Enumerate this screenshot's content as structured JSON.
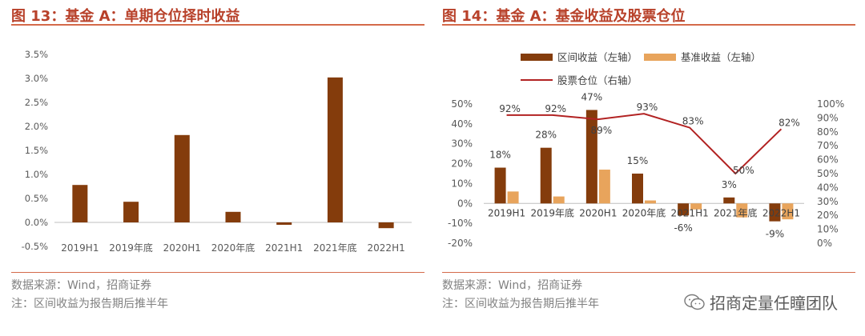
{
  "colors": {
    "bar_dark": "#843c0c",
    "bar_light": "#e8a45c",
    "line_red": "#b22222",
    "title_red": "#b8412a",
    "rule": "#d46a4a"
  },
  "left": {
    "title": "图 13：基金 A：单期仓位择时收益",
    "source": "数据来源：Wind，招商证券",
    "note": "注：区间收益为报告期后推半年",
    "chart_data": {
      "type": "bar",
      "categories": [
        "2019H1",
        "2019年底",
        "2020H1",
        "2020年底",
        "2021H1",
        "2021年底",
        "2022H1"
      ],
      "values": [
        0.78,
        0.43,
        1.82,
        0.22,
        -0.05,
        3.02,
        -0.12
      ],
      "ylim": [
        -0.5,
        3.5
      ],
      "yticks": [
        "-0.5%",
        "0.0%",
        "0.5%",
        "1.0%",
        "1.5%",
        "2.0%",
        "2.5%",
        "3.0%",
        "3.5%"
      ],
      "grid": false
    }
  },
  "right": {
    "title": "图 14：基金 A：基金收益及股票仓位",
    "source": "数据来源：Wind，招商证券",
    "note": "注：区间收益为报告期后推半年",
    "chart_data": {
      "type": "bar",
      "categories": [
        "2019H1",
        "2019年底",
        "2020H1",
        "2020年底",
        "2021H1",
        "2021年底",
        "2022H1"
      ],
      "series": [
        {
          "name": "区间收益（左轴）",
          "type": "bar",
          "axis": "left",
          "values": [
            18,
            28,
            47,
            15,
            -6,
            3,
            -9
          ]
        },
        {
          "name": "基准收益（左轴）",
          "type": "bar",
          "axis": "left",
          "values": [
            6,
            3.5,
            17,
            1.5,
            -3,
            -7,
            -8
          ]
        },
        {
          "name": "股票仓位（右轴）",
          "type": "line",
          "axis": "right",
          "values": [
            92,
            92,
            89,
            93,
            83,
            50,
            82
          ]
        }
      ],
      "bar_labels": [
        "18%",
        "28%",
        "47%",
        "15%",
        "-6%",
        "3%",
        "-9%"
      ],
      "line_labels": [
        "92%",
        "92%",
        "89%",
        "93%",
        "83%",
        "50%",
        "82%"
      ],
      "ylim_left": [
        -20,
        50
      ],
      "ylim_right": [
        0,
        100
      ],
      "yticks_left": [
        "-20%",
        "-10%",
        "0%",
        "10%",
        "20%",
        "30%",
        "40%",
        "50%"
      ],
      "yticks_right": [
        "0%",
        "10%",
        "20%",
        "30%",
        "40%",
        "50%",
        "60%",
        "70%",
        "80%",
        "90%",
        "100%"
      ],
      "legend": "top",
      "grid": false
    }
  },
  "watermark": "招商定量任瞳团队"
}
